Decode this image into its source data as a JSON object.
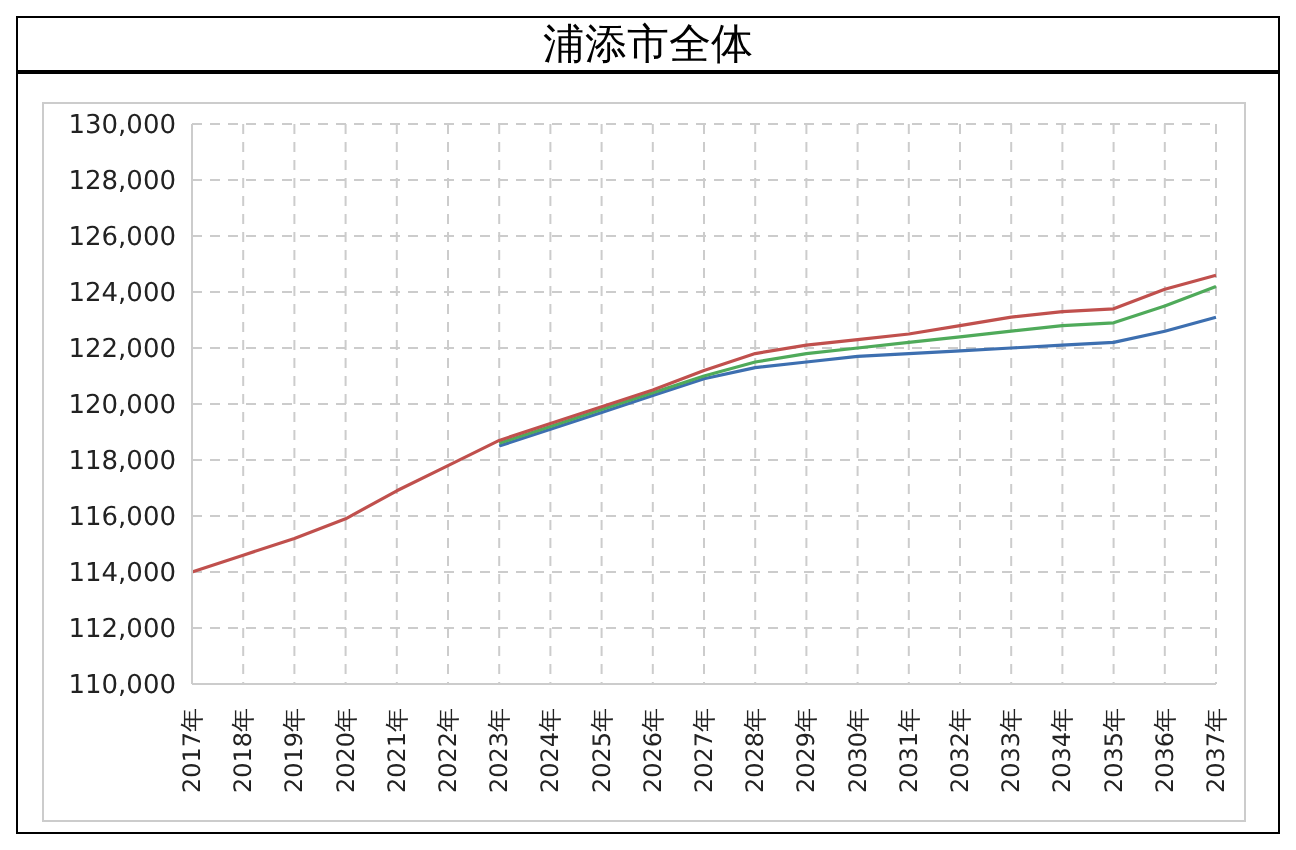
{
  "chart_data": {
    "type": "line",
    "title": "浦添市全体",
    "categories": [
      "2017年",
      "2018年",
      "2019年",
      "2020年",
      "2021年",
      "2022年",
      "2023年",
      "2024年",
      "2025年",
      "2026年",
      "2027年",
      "2028年",
      "2029年",
      "2030年",
      "2031年",
      "2032年",
      "2033年",
      "2034年",
      "2035年",
      "2036年",
      "2037年"
    ],
    "series": [
      {
        "color": "#3d6fb0",
        "values": [
          null,
          null,
          null,
          null,
          null,
          null,
          118500,
          119100,
          119700,
          120300,
          120900,
          121300,
          121500,
          121700,
          121800,
          121900,
          122000,
          122100,
          122200,
          122600,
          123100
        ]
      },
      {
        "color": "#4faa5a",
        "values": [
          null,
          null,
          null,
          null,
          null,
          null,
          118600,
          119200,
          119800,
          120400,
          121000,
          121500,
          121800,
          122000,
          122200,
          122400,
          122600,
          122800,
          122900,
          123500,
          124200
        ]
      },
      {
        "color": "#c0504d",
        "values": [
          114000,
          114600,
          115200,
          115900,
          116900,
          117800,
          118700,
          119300,
          119900,
          120500,
          121200,
          121800,
          122100,
          122300,
          122500,
          122800,
          123100,
          123300,
          123400,
          124100,
          124600
        ]
      }
    ],
    "ylim": [
      110000,
      130000
    ],
    "yticks": [
      {
        "value": 110000,
        "label": "110,000"
      },
      {
        "value": 112000,
        "label": "112,000"
      },
      {
        "value": 114000,
        "label": "114,000"
      },
      {
        "value": 116000,
        "label": "116,000"
      },
      {
        "value": 118000,
        "label": "118,000"
      },
      {
        "value": 120000,
        "label": "120,000"
      },
      {
        "value": 122000,
        "label": "122,000"
      },
      {
        "value": 124000,
        "label": "124,000"
      },
      {
        "value": 126000,
        "label": "126,000"
      },
      {
        "value": 128000,
        "label": "128,000"
      },
      {
        "value": 130000,
        "label": "130,000"
      }
    ],
    "grid": true,
    "marker": "none",
    "line_style": "solid"
  }
}
